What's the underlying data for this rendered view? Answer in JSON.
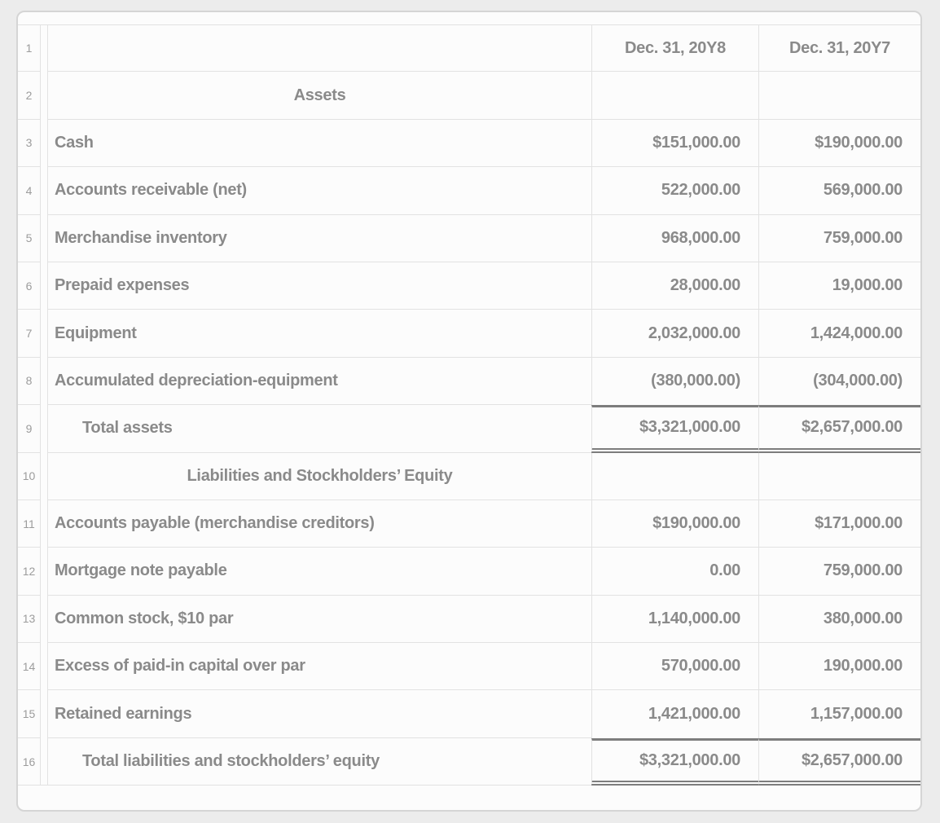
{
  "sheet": {
    "rows": [
      {
        "num": "1",
        "type": "header",
        "label": "",
        "y8": "Dec. 31, 20Y8",
        "y7": "Dec. 31, 20Y7"
      },
      {
        "num": "2",
        "type": "section",
        "label": "Assets",
        "y8": "",
        "y7": ""
      },
      {
        "num": "3",
        "type": "item",
        "label": "Cash",
        "y8": "$151,000.00",
        "y7": "$190,000.00"
      },
      {
        "num": "4",
        "type": "item",
        "label": "Accounts receivable (net)",
        "y8": "522,000.00",
        "y7": "569,000.00"
      },
      {
        "num": "5",
        "type": "item",
        "label": "Merchandise inventory",
        "y8": "968,000.00",
        "y7": "759,000.00"
      },
      {
        "num": "6",
        "type": "item",
        "label": "Prepaid expenses",
        "y8": "28,000.00",
        "y7": "19,000.00"
      },
      {
        "num": "7",
        "type": "item",
        "label": "Equipment",
        "y8": "2,032,000.00",
        "y7": "1,424,000.00"
      },
      {
        "num": "8",
        "type": "item",
        "label": "Accumulated depreciation-equipment",
        "y8": "(380,000.00)",
        "y7": "(304,000.00)"
      },
      {
        "num": "9",
        "type": "total",
        "label": "Total assets",
        "y8": "$3,321,000.00",
        "y7": "$2,657,000.00"
      },
      {
        "num": "10",
        "type": "section",
        "label": "Liabilities and Stockholders’ Equity",
        "y8": "",
        "y7": ""
      },
      {
        "num": "11",
        "type": "item",
        "label": "Accounts payable (merchandise creditors)",
        "y8": "$190,000.00",
        "y7": "$171,000.00"
      },
      {
        "num": "12",
        "type": "item",
        "label": "Mortgage note payable",
        "y8": "0.00",
        "y7": "759,000.00"
      },
      {
        "num": "13",
        "type": "item",
        "label": "Common stock, $10 par",
        "y8": "1,140,000.00",
        "y7": "380,000.00"
      },
      {
        "num": "14",
        "type": "item",
        "label": "Excess of paid-in capital over par",
        "y8": "570,000.00",
        "y7": "190,000.00"
      },
      {
        "num": "15",
        "type": "item",
        "label": "Retained earnings",
        "y8": "1,421,000.00",
        "y7": "1,157,000.00"
      },
      {
        "num": "16",
        "type": "total",
        "label": "Total liabilities and stockholders’ equity",
        "y8": "$3,321,000.00",
        "y7": "$2,657,000.00"
      }
    ]
  }
}
